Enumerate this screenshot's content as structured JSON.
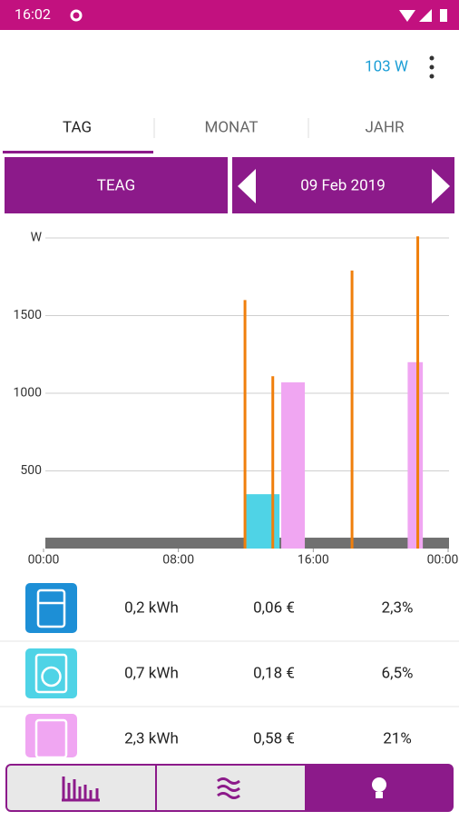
{
  "status_bar": {
    "time": "16:02"
  },
  "app_bar": {
    "power": "103 W"
  },
  "tabs": [
    "TAG",
    "MONAT",
    "JAHR"
  ],
  "selector": {
    "provider": "TEAG",
    "date": "09 Feb 2019"
  },
  "chart_data": {
    "type": "bar",
    "xlim": [
      0,
      24
    ],
    "xticks": [
      {
        "value": 0,
        "label": "00:00"
      },
      {
        "value": 8,
        "label": "08:00"
      },
      {
        "value": 16,
        "label": "16:00"
      },
      {
        "value": 24,
        "label": "00:00"
      }
    ],
    "ylim": [
      0,
      2000
    ],
    "yticks": [
      500,
      1000,
      1500,
      {
        "value": 2000,
        "label": "W"
      }
    ],
    "grid": true,
    "base": {
      "value": 70,
      "color": "#707070"
    },
    "bars": [
      {
        "x0": 11.9,
        "x1": 14.0,
        "value": 350,
        "color": "#4fd3e6"
      },
      {
        "x0": 14.1,
        "x1": 15.5,
        "value": 1070,
        "color": "#f0a6f2"
      },
      {
        "x0": 21.6,
        "x1": 22.5,
        "value": 1200,
        "color": "#f0a6f2"
      }
    ],
    "spikes": {
      "color": "#f07f0c",
      "x": [
        11.95,
        13.6,
        18.3,
        22.2
      ],
      "values": [
        1600,
        1110,
        1790,
        2010
      ]
    }
  },
  "rows": [
    {
      "energy": "0,2 kWh",
      "cost": "0,06 €",
      "share": "2,3%"
    },
    {
      "energy": "0,7 kWh",
      "cost": "0,18 €",
      "share": "6,5%"
    },
    {
      "energy": "2,3 kWh",
      "cost": "0,58 €",
      "share": "21%"
    }
  ]
}
